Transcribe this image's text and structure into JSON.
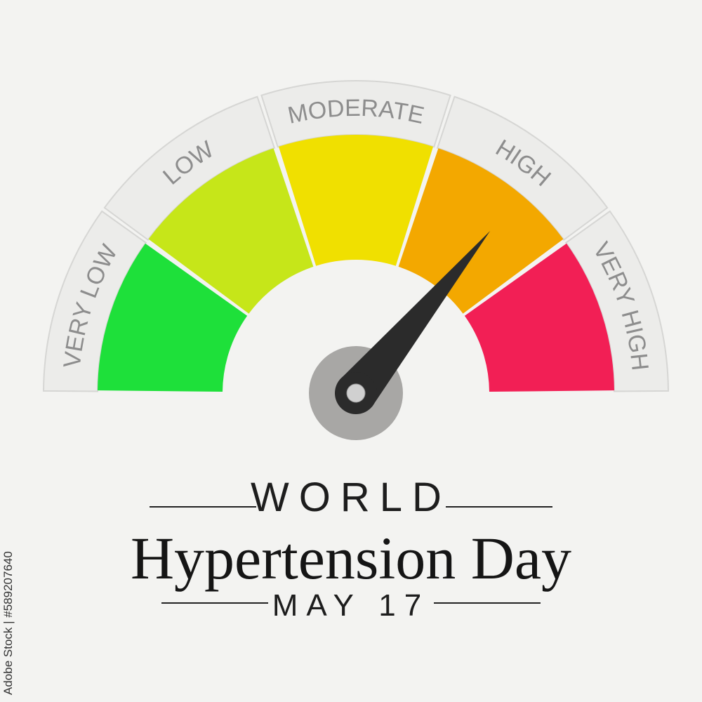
{
  "gauge": {
    "segments": [
      {
        "label": "VERY LOW",
        "color": "#1ee03a"
      },
      {
        "label": "LOW",
        "color": "#c6e619"
      },
      {
        "label": "MODERATE",
        "color": "#f0e000"
      },
      {
        "label": "HIGH",
        "color": "#f3a800"
      },
      {
        "label": "VERY HIGH",
        "color": "#f21f55"
      }
    ],
    "needle_value_fraction": 0.72,
    "needle_color": "#2b2b2b",
    "hub_color": "#a8a7a5"
  },
  "text": {
    "world": "WORLD",
    "title": "Hypertension Day",
    "date": "MAY 17"
  },
  "watermark": "Adobe Stock | #589207640"
}
